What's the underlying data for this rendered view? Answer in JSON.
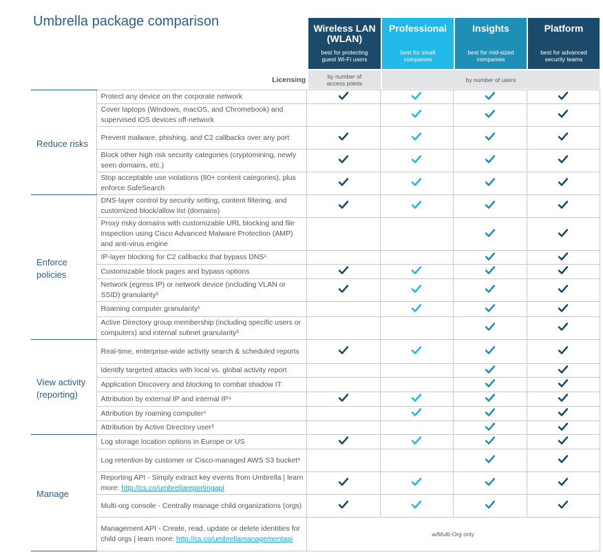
{
  "title": "Umbrella package comparison",
  "plans": [
    {
      "name": "Wireless LAN (WLAN)",
      "desc": "best for protecting guest Wi-Fi users",
      "color": "#1b4a6b"
    },
    {
      "name": "Professional",
      "desc": "best for small companies",
      "color": "#20b9e8"
    },
    {
      "name": "Insights",
      "desc": "best for mid-sized companies",
      "color": "#1e8fb6"
    },
    {
      "name": "Platform",
      "desc": "best for advanced security teams",
      "color": "#1b4a6b"
    }
  ],
  "licensing": {
    "label": "Licensing",
    "wlan": "by number of access points",
    "others": "by number of users"
  },
  "colors": {
    "dark_check": "#1b4a6b",
    "light_check": "#20b9e8"
  },
  "sections": [
    {
      "category": "Reduce risks",
      "rows": [
        {
          "text": "Protect any device on the corporate network",
          "checks": [
            1,
            1,
            1,
            1
          ]
        },
        {
          "text": "Cover laptops (Windows, macOS, and Chromebook) and supervised iOS devices off-network",
          "checks": [
            0,
            1,
            1,
            1
          ]
        },
        {
          "text": "Prevent malware, phishing, and C2 callbacks over any port",
          "checks": [
            1,
            1,
            1,
            1
          ]
        },
        {
          "text": "Block other high risk security categories (cryptomining, newly seen domains, etc.)",
          "checks": [
            1,
            1,
            1,
            1
          ]
        },
        {
          "text": "Stop acceptable use violations (80+ content categories), plus enforce SafeSearch",
          "checks": [
            1,
            1,
            1,
            1
          ]
        }
      ]
    },
    {
      "category": "Enforce policies",
      "rows": [
        {
          "text": "DNS-layer control by security setting, content filtering, and customized block/allow list (domains)",
          "checks": [
            1,
            1,
            1,
            1
          ]
        },
        {
          "text": "Proxy risky domains with customizable URL blocking and file inspection using Cisco Advanced Malware Protection (AMP) and anti-virus engine",
          "checks": [
            0,
            0,
            1,
            1
          ]
        },
        {
          "text": "IP-layer blocking for C2 callbacks that bypass DNS¹",
          "checks": [
            0,
            0,
            1,
            1
          ]
        },
        {
          "text": "Customizable block pages and bypass options",
          "checks": [
            1,
            1,
            1,
            1
          ]
        },
        {
          "text": "Network (egress IP) or network device (including VLAN or SSID) granularity²",
          "checks": [
            1,
            1,
            1,
            1
          ]
        },
        {
          "text": "Roaming computer granularity¹",
          "checks": [
            0,
            1,
            1,
            1
          ]
        },
        {
          "text": "Active Directory group membership (including specific users or computers) and internal subnet granularity³",
          "checks": [
            0,
            0,
            1,
            1
          ]
        }
      ]
    },
    {
      "category": "View activity (reporting)",
      "rows": [
        {
          "text": "Real-time, enterprise-wide activity search & scheduled reports",
          "checks": [
            1,
            1,
            1,
            1
          ]
        },
        {
          "text": "Identify targeted attacks with local vs. global activity report",
          "checks": [
            0,
            0,
            1,
            1
          ]
        },
        {
          "text": "Application Discovery and blocking to combat shadow IT",
          "checks": [
            0,
            0,
            1,
            1
          ]
        },
        {
          "text": "Attribution by external IP and internal IP⁴",
          "checks": [
            1,
            1,
            1,
            1
          ]
        },
        {
          "text": "Attribution by roaming computer⁵",
          "checks": [
            0,
            1,
            1,
            1
          ]
        },
        {
          "text": "Attribution by Active Directory user³",
          "checks": [
            0,
            0,
            1,
            1
          ]
        }
      ]
    },
    {
      "category": "Manage",
      "rows": [
        {
          "text": "Log storage location options in Europe or US",
          "checks": [
            1,
            1,
            1,
            1
          ]
        },
        {
          "text": "Log retention by customer or Cisco-managed AWS S3 bucket⁶",
          "checks": [
            0,
            0,
            1,
            1
          ]
        },
        {
          "text": "Reporting API - Simply extract key events from Umbrella | learn more: ",
          "link": "http://cs.co/umbrellareportingapi",
          "checks": [
            1,
            1,
            1,
            1
          ]
        },
        {
          "text": "Multi-org console - Centrally manage child organizations (orgs)",
          "checks": [
            1,
            1,
            1,
            1
          ]
        },
        {
          "text": "Management API - Create, read, update or delete identities for child orgs | learn more: ",
          "link": "http://cs.co/umbrellamanagementapi",
          "span_text": "w/Multi-Org only"
        }
      ]
    }
  ]
}
